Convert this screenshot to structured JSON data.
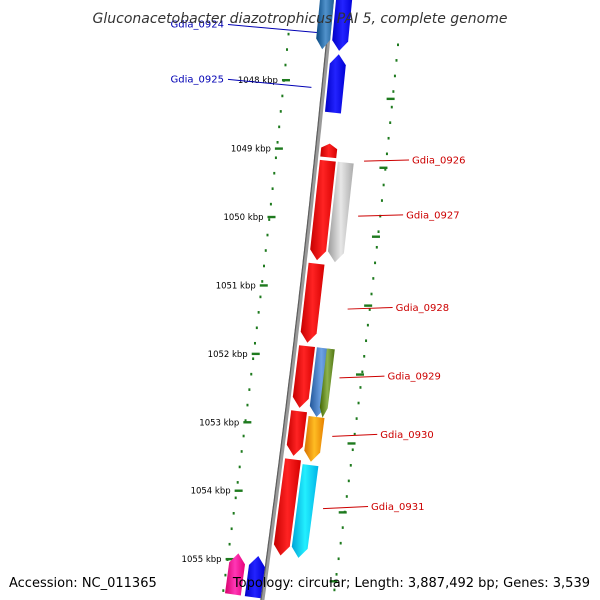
{
  "title": "Gluconacetobacter diazotrophicus PAI 5, complete genome",
  "footer": {
    "accession": "Accession: NC_011365",
    "summary": "Topology: circular; Length: 3,887,492 bp; Genes: 3,539"
  },
  "colors": {
    "backbone": "#8c8c8c",
    "tick": "#1e7a1e",
    "label_left": "#0000b4",
    "label_right": "#cc0000"
  },
  "scale": {
    "unit": "kbp",
    "ticks": [
      {
        "kbp": 1048,
        "label": "1048 kbp"
      },
      {
        "kbp": 1049,
        "label": "1049 kbp"
      },
      {
        "kbp": 1050,
        "label": "1050 kbp"
      },
      {
        "kbp": 1051,
        "label": "1051 kbp"
      },
      {
        "kbp": 1052,
        "label": "1052 kbp"
      },
      {
        "kbp": 1053,
        "label": "1053 kbp"
      },
      {
        "kbp": 1054,
        "label": "1054 kbp"
      },
      {
        "kbp": 1055,
        "label": "1055 kbp"
      }
    ]
  },
  "genes": [
    {
      "id": "Gdia_0924",
      "side": "left",
      "strand": "outer",
      "start_kbp": 1046.6,
      "end_kbp": 1047.5,
      "color": "#2e6fa8"
    },
    {
      "id": "Gdia_0924b",
      "side": "left",
      "strand": "inner",
      "start_kbp": 1046.6,
      "end_kbp": 1047.5,
      "color": "#0000ee"
    },
    {
      "id": "Gdia_0925",
      "side": "left",
      "strand": "inner",
      "start_kbp": 1047.55,
      "end_kbp": 1048.4,
      "color": "#0000ee"
    },
    {
      "id": "Gdia_0926",
      "side": "right",
      "strand": "outer",
      "start_kbp": 1048.85,
      "end_kbp": 1049.05,
      "color": "#ee0000"
    },
    {
      "id": "Gdia_0926b",
      "side": "right",
      "strand": "outer",
      "start_kbp": 1049.1,
      "end_kbp": 1050.55,
      "color": "#ee0000"
    },
    {
      "id": "Gdia_0927",
      "side": "right",
      "strand": "inner",
      "start_kbp": 1049.1,
      "end_kbp": 1050.55,
      "color": "#c4c4c4"
    },
    {
      "id": "Gdia_0928",
      "side": "right",
      "strand": "outer",
      "start_kbp": 1050.6,
      "end_kbp": 1051.75,
      "color": "#ee0000"
    },
    {
      "id": "Gdia_0929a",
      "side": "right",
      "strand": "outer",
      "start_kbp": 1051.8,
      "end_kbp": 1052.7,
      "color": "#ee0000"
    },
    {
      "id": "Gdia_0929",
      "side": "right",
      "strand": "inner",
      "start_kbp": 1051.8,
      "end_kbp": 1052.8,
      "color": "#4a7fc2"
    },
    {
      "id": "Gdia_0929c",
      "side": "right",
      "strand": "inner2",
      "start_kbp": 1051.8,
      "end_kbp": 1052.8,
      "color": "#6a8f2a"
    },
    {
      "id": "Gdia_0930a",
      "side": "right",
      "strand": "outer",
      "start_kbp": 1052.75,
      "end_kbp": 1053.4,
      "color": "#ee0000"
    },
    {
      "id": "Gdia_0930",
      "side": "right",
      "strand": "inner",
      "start_kbp": 1052.8,
      "end_kbp": 1053.45,
      "color": "#ff9900"
    },
    {
      "id": "Gdia_0931a",
      "side": "right",
      "strand": "outer",
      "start_kbp": 1053.45,
      "end_kbp": 1054.85,
      "color": "#ee0000"
    },
    {
      "id": "Gdia_0931",
      "side": "right",
      "strand": "inner",
      "start_kbp": 1053.5,
      "end_kbp": 1054.85,
      "color": "#00ccff"
    },
    {
      "id": "Gdia_0932a",
      "side": "left",
      "strand": "outer",
      "start_kbp": 1054.9,
      "end_kbp": 1055.5,
      "color": "#ff1493"
    },
    {
      "id": "Gdia_0932b",
      "side": "left",
      "strand": "inner",
      "start_kbp": 1054.9,
      "end_kbp": 1055.5,
      "color": "#0000ee"
    }
  ],
  "labels": [
    {
      "text": "Gdia_0924",
      "side": "left",
      "kbp": 1047.25
    },
    {
      "text": "Gdia_0925",
      "side": "left",
      "kbp": 1048.05
    },
    {
      "text": "Gdia_0926",
      "side": "right",
      "kbp": 1049.05
    },
    {
      "text": "Gdia_0927",
      "side": "right",
      "kbp": 1049.85
    },
    {
      "text": "Gdia_0928",
      "side": "right",
      "kbp": 1051.2
    },
    {
      "text": "Gdia_0929",
      "side": "right",
      "kbp": 1052.2
    },
    {
      "text": "Gdia_0930",
      "side": "right",
      "kbp": 1053.05
    },
    {
      "text": "Gdia_0931",
      "side": "right",
      "kbp": 1054.1
    }
  ]
}
